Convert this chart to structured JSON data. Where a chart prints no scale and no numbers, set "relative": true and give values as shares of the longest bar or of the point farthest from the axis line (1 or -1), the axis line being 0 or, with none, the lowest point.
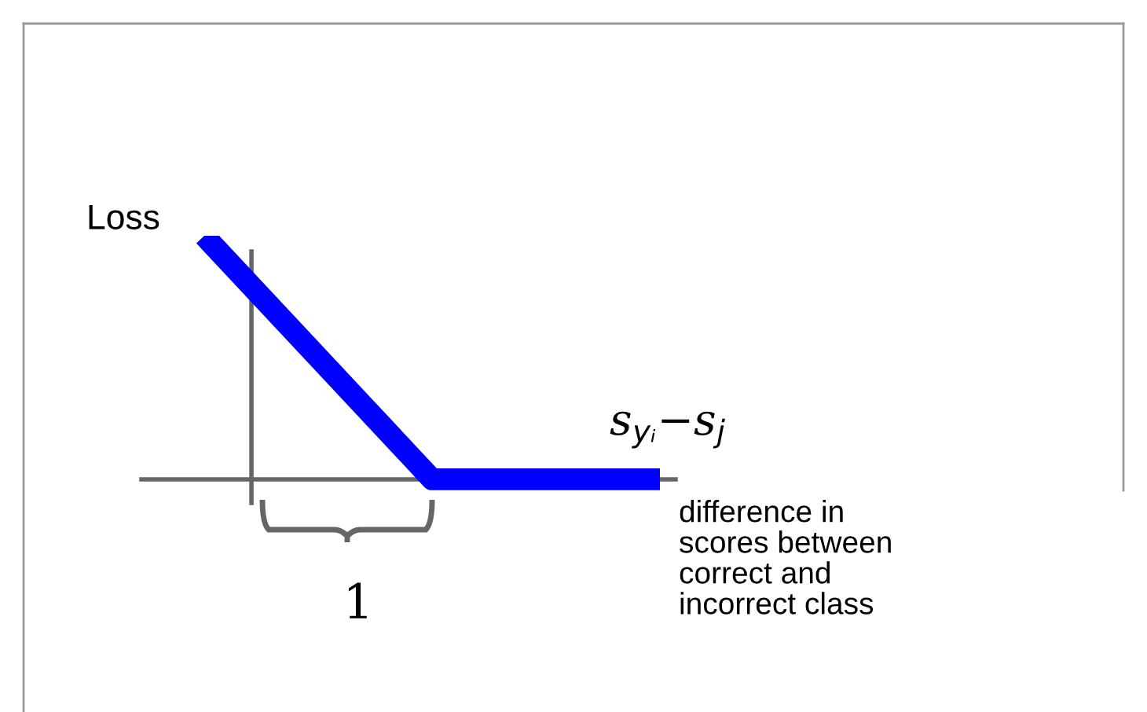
{
  "chart_data": {
    "type": "line",
    "relative": true,
    "categories": [
      null,
      null,
      null
    ],
    "series": [
      {
        "color": "#0000ff",
        "values": [
          1,
          0,
          0
        ]
      }
    ],
    "ylabel": "Loss",
    "xlabel": "s$_{yᵢ}$−s$_{j}$",
    "annotations": [
      "1",
      "difference in\nscores between\ncorrect and\nincorrect class"
    ],
    "marker": "none",
    "line_style": "solid"
  }
}
